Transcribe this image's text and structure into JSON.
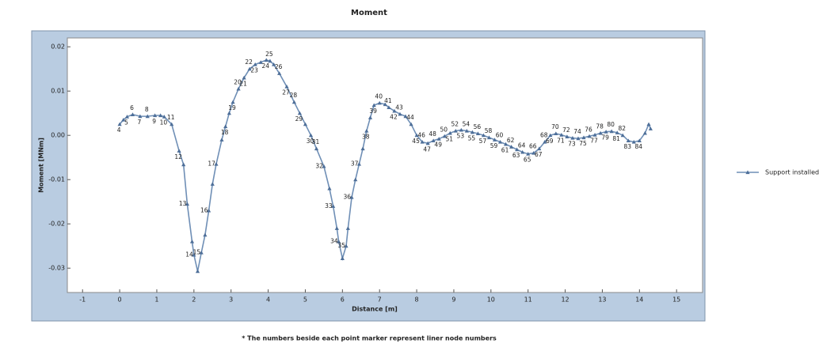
{
  "chart_data": {
    "type": "line",
    "title": "Moment",
    "x_label": "Distance [m]",
    "y_label": "Moment [MNm]",
    "footnote": "* The numbers beside each point marker represent liner node numbers",
    "legend_position": "right",
    "xlim": [
      -1.41,
      15.7
    ],
    "ylim": [
      -0.0355,
      0.022
    ],
    "xticks": [
      -1,
      0,
      1,
      2,
      3,
      4,
      5,
      6,
      7,
      8,
      9,
      10,
      11,
      12,
      13,
      14,
      15
    ],
    "yticks": [
      0.02,
      0.01,
      {
        "value": 0,
        "label": "0.00"
      },
      -0.01,
      -0.02,
      -0.03
    ],
    "x": [
      0.0,
      0.1,
      0.2,
      0.35,
      0.55,
      0.75,
      0.95,
      1.1,
      1.2,
      1.4,
      1.6,
      1.72,
      1.82,
      1.95,
      2.0,
      2.1,
      2.2,
      2.3,
      2.4,
      2.5,
      2.6,
      2.75,
      2.85,
      2.95,
      3.05,
      3.2,
      3.35,
      3.5,
      3.65,
      3.8,
      3.95,
      4.05,
      4.15,
      4.3,
      4.5,
      4.7,
      4.85,
      5.0,
      5.15,
      5.3,
      5.5,
      5.65,
      5.75,
      5.85,
      5.9,
      6.0,
      6.1,
      6.15,
      6.25,
      6.35,
      6.45,
      6.55,
      6.65,
      6.75,
      6.85,
      7.0,
      7.15,
      7.25,
      7.4,
      7.55,
      7.7,
      7.85,
      8.0,
      8.15,
      8.3,
      8.45,
      8.6,
      8.75,
      8.9,
      9.05,
      9.2,
      9.35,
      9.5,
      9.65,
      9.8,
      9.95,
      10.1,
      10.25,
      10.4,
      10.55,
      10.7,
      10.85,
      11.0,
      11.15,
      11.3,
      11.45,
      11.6,
      11.75,
      11.9,
      12.05,
      12.2,
      12.35,
      12.5,
      12.65,
      12.8,
      12.95,
      13.1,
      13.25,
      13.4,
      13.55,
      13.7,
      13.85,
      14.0,
      14.15,
      14.25,
      14.3
    ],
    "series": [
      {
        "name": "Support installed",
        "color": "#6f8fb6",
        "marker_color": "#4d6e98",
        "values": [
          0.0025,
          0.0035,
          0.0042,
          0.0047,
          0.0043,
          0.0043,
          0.0045,
          0.0045,
          0.0042,
          0.0025,
          -0.0035,
          -0.0066,
          -0.0155,
          -0.024,
          -0.027,
          -0.0307,
          -0.0265,
          -0.0225,
          -0.017,
          -0.011,
          -0.0065,
          -0.001,
          0.002,
          0.005,
          0.0075,
          0.0105,
          0.013,
          0.015,
          0.016,
          0.0165,
          0.017,
          0.0168,
          0.016,
          0.014,
          0.011,
          0.0075,
          0.005,
          0.0025,
          0.0,
          -0.003,
          -0.007,
          -0.012,
          -0.016,
          -0.021,
          -0.024,
          -0.0278,
          -0.025,
          -0.021,
          -0.014,
          -0.01,
          -0.0065,
          -0.003,
          0.001,
          0.004,
          0.0068,
          0.0073,
          0.007,
          0.0063,
          0.0055,
          0.0048,
          0.0043,
          0.0025,
          0.0,
          -0.0015,
          -0.0018,
          -0.0012,
          -0.0008,
          -0.0002,
          0.0005,
          0.001,
          0.0012,
          0.001,
          0.0007,
          0.0004,
          0.0,
          -0.0005,
          -0.001,
          -0.0015,
          -0.002,
          -0.0026,
          -0.0032,
          -0.0038,
          -0.0042,
          -0.004,
          -0.003,
          -0.0015,
          0.0,
          0.0004,
          0.0001,
          -0.0003,
          -0.0006,
          -0.0007,
          -0.0005,
          -0.0002,
          0.0001,
          0.0005,
          0.0008,
          0.0009,
          0.0006,
          0.0,
          -0.0012,
          -0.0015,
          -0.0012,
          0.0005,
          0.0025,
          0.0015
        ],
        "point_labels": [
          4,
          null,
          5,
          6,
          7,
          8,
          9,
          null,
          10,
          11,
          12,
          null,
          13,
          null,
          14,
          null,
          15,
          null,
          16,
          null,
          17,
          null,
          18,
          null,
          19,
          20,
          21,
          22,
          23,
          null,
          24,
          25,
          null,
          26,
          27,
          28,
          29,
          null,
          30,
          31,
          32,
          null,
          33,
          null,
          34,
          null,
          35,
          null,
          36,
          null,
          37,
          null,
          38,
          null,
          39,
          40,
          null,
          41,
          42,
          43,
          null,
          44,
          45,
          46,
          47,
          48,
          49,
          50,
          51,
          52,
          53,
          54,
          55,
          56,
          57,
          58,
          59,
          60,
          61,
          62,
          63,
          64,
          65,
          66,
          67,
          68,
          69,
          70,
          71,
          72,
          73,
          74,
          75,
          76,
          77,
          78,
          79,
          80,
          81,
          82,
          83,
          null,
          84,
          null,
          null
        ]
      }
    ]
  }
}
